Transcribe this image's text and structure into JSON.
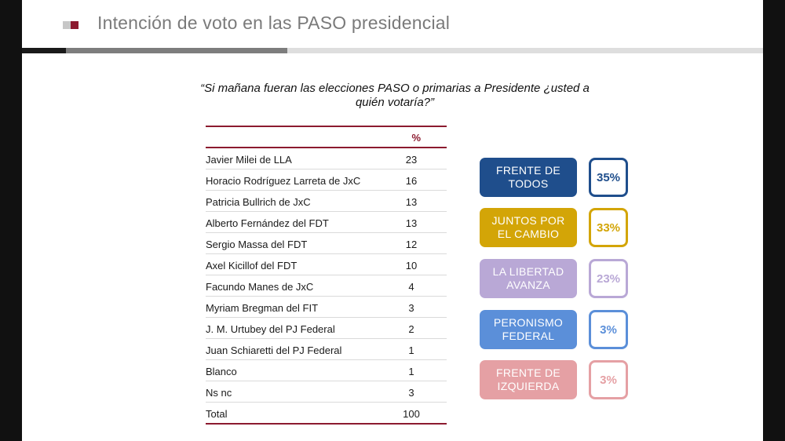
{
  "header": {
    "title": "Intención de voto en las PASO presidencial"
  },
  "question": "“Si mañana fueran las elecciones PASO o primarias a Presidente ¿usted a quién votaría?”",
  "table": {
    "column_header": "%",
    "rows": [
      {
        "label": "Javier Milei de LLA",
        "value": "23"
      },
      {
        "label": "Horacio Rodríguez  Larreta de JxC",
        "value": "16"
      },
      {
        "label": "Patricia Bullrich de JxC",
        "value": "13"
      },
      {
        "label": "Alberto Fernández del FDT",
        "value": "13"
      },
      {
        "label": "Sergio Massa del FDT",
        "value": "12"
      },
      {
        "label": "Axel Kicillof del FDT",
        "value": "10"
      },
      {
        "label": "Facundo Manes de JxC",
        "value": "4"
      },
      {
        "label": "Myriam Bregman del FIT",
        "value": "3"
      },
      {
        "label": "J. M. Urtubey del PJ Federal",
        "value": "2"
      },
      {
        "label": "Juan Schiaretti del PJ Federal",
        "value": "1"
      },
      {
        "label": "Blanco",
        "value": "1"
      },
      {
        "label": "Ns nc",
        "value": "3"
      },
      {
        "label": "Total",
        "value": "100"
      }
    ]
  },
  "parties": [
    {
      "label": "FRENTE DE TODOS",
      "value": "35%",
      "color": "#1f4e8c"
    },
    {
      "label": "JUNTOS POR EL CAMBIO",
      "value": "33%",
      "color": "#d3a507"
    },
    {
      "label": "LA LIBERTAD AVANZA",
      "value": "23%",
      "color": "#b9a8d6"
    },
    {
      "label": "PERONISMO FEDERAL",
      "value": "3%",
      "color": "#5b8fd9"
    },
    {
      "label": "FRENTE DE IZQUIERDA",
      "value": "3%",
      "color": "#e5a0a4"
    }
  ],
  "chart_data": {
    "type": "table",
    "columns": [
      "",
      "%"
    ],
    "categories": [
      "Javier Milei de LLA",
      "Horacio Rodríguez  Larreta de JxC",
      "Patricia Bullrich de JxC",
      "Alberto Fernández del FDT",
      "Sergio Massa del FDT",
      "Axel Kicillof del FDT",
      "Facundo Manes de JxC",
      "Myriam Bregman del FIT",
      "J. M. Urtubey del PJ Federal",
      "Juan Schiaretti del PJ Federal",
      "Blanco",
      "Ns nc",
      "Total"
    ],
    "values": [
      23,
      16,
      13,
      13,
      12,
      10,
      4,
      3,
      2,
      1,
      1,
      3,
      100
    ],
    "party_totals": {
      "categories": [
        "FRENTE DE TODOS",
        "JUNTOS POR EL CAMBIO",
        "LA LIBERTAD AVANZA",
        "PERONISMO FEDERAL",
        "FRENTE DE IZQUIERDA"
      ],
      "values": [
        35,
        33,
        23,
        3,
        3
      ]
    }
  }
}
